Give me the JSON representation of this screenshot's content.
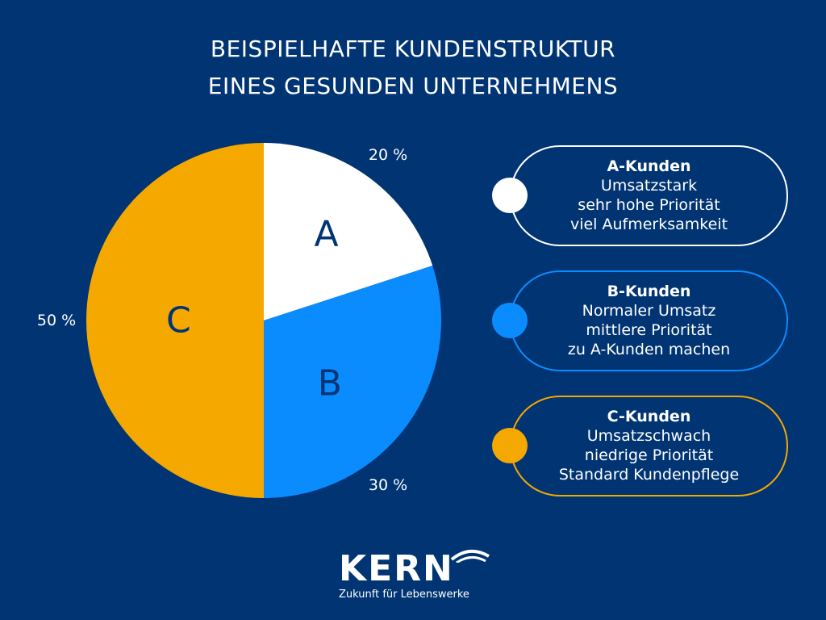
{
  "title_lines": [
    "BEISPIELHAFTE KUNDENSTRUKTUR",
    "EINES GESUNDEN UNTERNEHMENS"
  ],
  "chart_data": {
    "type": "pie",
    "title": "BEISPIELHAFTE KUNDENSTRUKTUR EINES GESUNDEN UNTERNEHMENS",
    "categories": [
      "A",
      "B",
      "C"
    ],
    "values": [
      20,
      30,
      50
    ],
    "labels": [
      "20 %",
      "30 %",
      "50 %"
    ],
    "colors": [
      "#ffffff",
      "#0a8cff",
      "#f5a800"
    ],
    "start": "top",
    "direction": "clockwise"
  },
  "legend": [
    {
      "title": "A-Kunden",
      "lines": [
        "Umsatzstark",
        "sehr hohe Priorität",
        "viel Aufmerksamkeit"
      ],
      "color": "#ffffff"
    },
    {
      "title": "B-Kunden",
      "lines": [
        "Normaler Umsatz",
        "mittlere Priorität",
        "zu A-Kunden machen"
      ],
      "color": "#0a8cff"
    },
    {
      "title": "C-Kunden",
      "lines": [
        "Umsatzschwach",
        "niedrige Priorität",
        "Standard Kundenpflege"
      ],
      "color": "#f5a800"
    }
  ],
  "logo": {
    "name": "KERN",
    "tagline": "Zukunft für Lebenswerke"
  }
}
